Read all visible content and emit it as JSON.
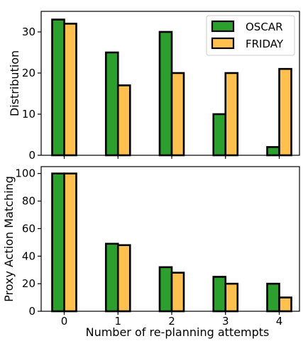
{
  "chart_data": [
    {
      "type": "bar",
      "categories": [
        "0",
        "1",
        "2",
        "3",
        "4"
      ],
      "series": [
        {
          "name": "OSCAR",
          "values": [
            33,
            25,
            30,
            10,
            2
          ],
          "color": "#2ca02c"
        },
        {
          "name": "FRIDAY",
          "values": [
            32,
            17,
            20,
            20,
            21
          ],
          "color": "#ffc04d"
        }
      ],
      "ylabel": "Distribution",
      "xlabel": "",
      "ylim": [
        0,
        35
      ],
      "yticks": [
        0,
        10,
        20,
        30
      ],
      "show_xtick_labels": false,
      "legend": "top-right",
      "grid": false
    },
    {
      "type": "bar",
      "categories": [
        "0",
        "1",
        "2",
        "3",
        "4"
      ],
      "series": [
        {
          "name": "OSCAR",
          "values": [
            100,
            49,
            32,
            25,
            20
          ],
          "color": "#2ca02c"
        },
        {
          "name": "FRIDAY",
          "values": [
            100,
            48,
            28,
            20,
            10
          ],
          "color": "#ffc04d"
        }
      ],
      "ylabel": "Proxy Action Matching",
      "xlabel": "Number of re-planning attempts",
      "ylim": [
        0,
        105
      ],
      "yticks": [
        0,
        20,
        40,
        60,
        80,
        100
      ],
      "show_xtick_labels": true,
      "grid": false
    }
  ]
}
